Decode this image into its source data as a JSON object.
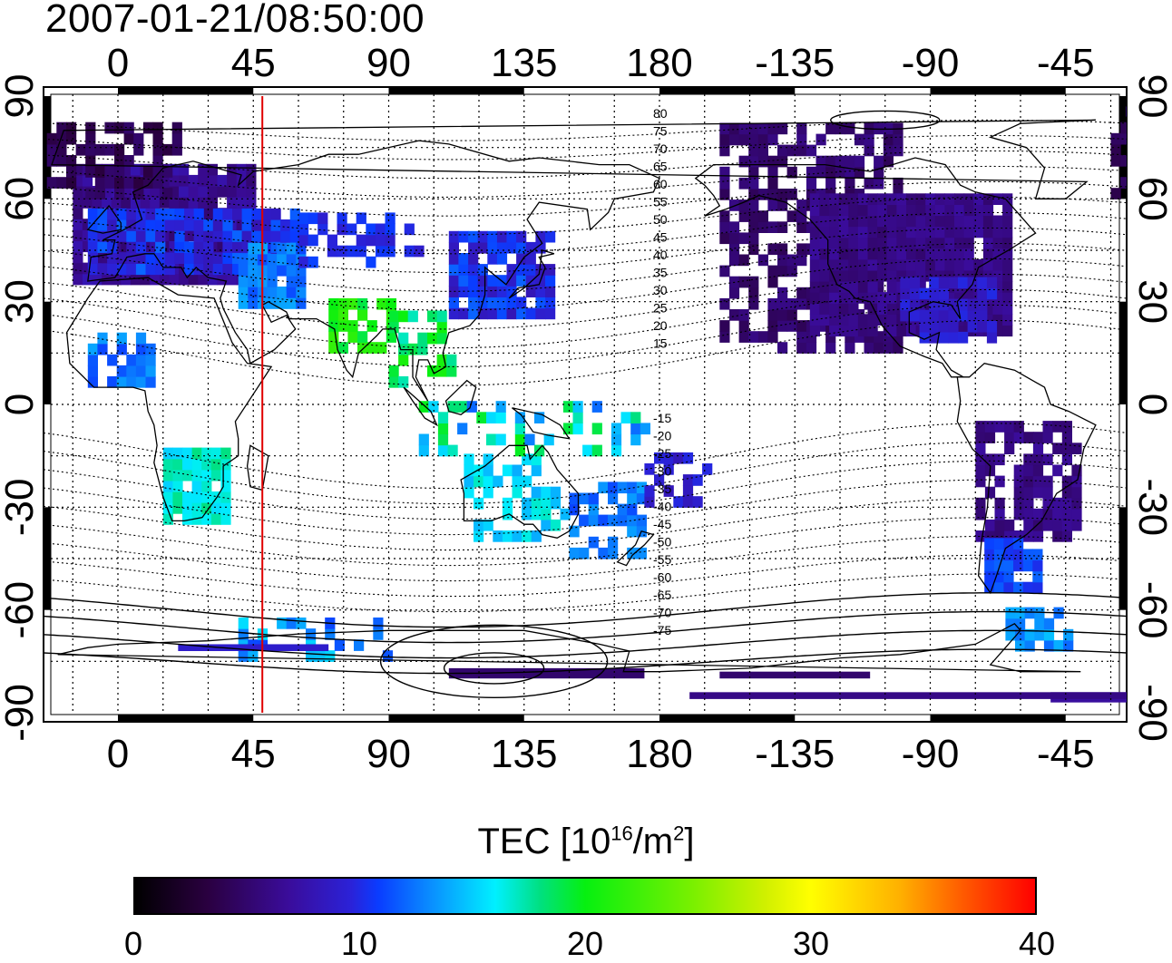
{
  "timestamp": "2007-01-21/08:50:00",
  "map": {
    "projection": "equirectangular",
    "center_longitude": 155,
    "lon_tick_labels": [
      "0",
      "45",
      "90",
      "135",
      "180",
      "-135",
      "-90",
      "-45"
    ],
    "lat_tick_labels_left": [
      "90",
      "60",
      "30",
      "0",
      "-30",
      "-60",
      "-90"
    ],
    "lat_tick_labels_right": [
      "90",
      "60",
      "30",
      "0",
      "-30",
      "-60",
      "-90"
    ],
    "marker_longitude": 48,
    "marker_color": "#e00000",
    "contour_labels_north": [
      "80",
      "75",
      "70",
      "65",
      "60",
      "55",
      "50",
      "45",
      "40",
      "35",
      "30",
      "25",
      "20",
      "15"
    ],
    "contour_labels_south": [
      "-15",
      "-20",
      "-25",
      "-30",
      "-35",
      "-40",
      "-45",
      "-50",
      "-55",
      "-60",
      "-65",
      "-70",
      "-75"
    ]
  },
  "colorbar": {
    "title_prefix": "TEC  [10",
    "title_exp1": "16",
    "title_mid": "/m",
    "title_exp2": "2",
    "title_suffix": "]",
    "ticks": [
      "0",
      "10",
      "20",
      "30",
      "40"
    ],
    "min": 0,
    "max": 40
  },
  "colors": {
    "grid": "#000000",
    "contour": "#000000",
    "marker": "#e00000"
  }
}
